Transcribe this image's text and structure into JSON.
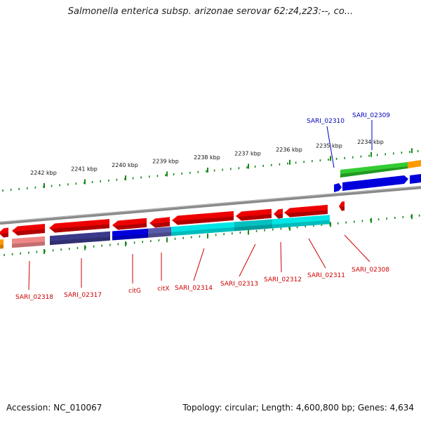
{
  "title": "Salmonella enterica subsp. arizonae serovar 62:z4,z23:--, co...",
  "footer": {
    "accession": "Accession: NC_010067",
    "summary": "Topology: circular; Length: 4,600,800 bp; Genes: 4,634"
  },
  "colors": {
    "backbone": "#8a8a8a",
    "tick": "#1a8a1a",
    "reverse_label": "#cc0000",
    "forward_label": "#0000bb",
    "red_gene": "#ee0000",
    "green_gene": "#33cc33",
    "blue_gene": "#0000dd",
    "orange_gene": "#ff9900",
    "cyan_gene": "#00e6e6",
    "teal_gene": "#00bfbf",
    "navy_gene": "#3a3a8a",
    "salmon_gene": "#ee8888",
    "slate_gene": "#5a5aaa"
  },
  "scale_labels": [
    "2242 kbp",
    "2241 kbp",
    "2240 kbp",
    "2239 kbp",
    "2238 kbp",
    "2237 kbp",
    "2236 kbp",
    "2235 kbp",
    "2234 kbp"
  ],
  "reverse_gene_labels": [
    "SARI_02318",
    "SARI_02317",
    "citG",
    "citX",
    "SARI_02314",
    "SARI_02313",
    "SARI_02312",
    "SARI_02311",
    "SARI_02308"
  ],
  "forward_gene_labels": [
    "SARI_02310",
    "SARI_02309"
  ]
}
